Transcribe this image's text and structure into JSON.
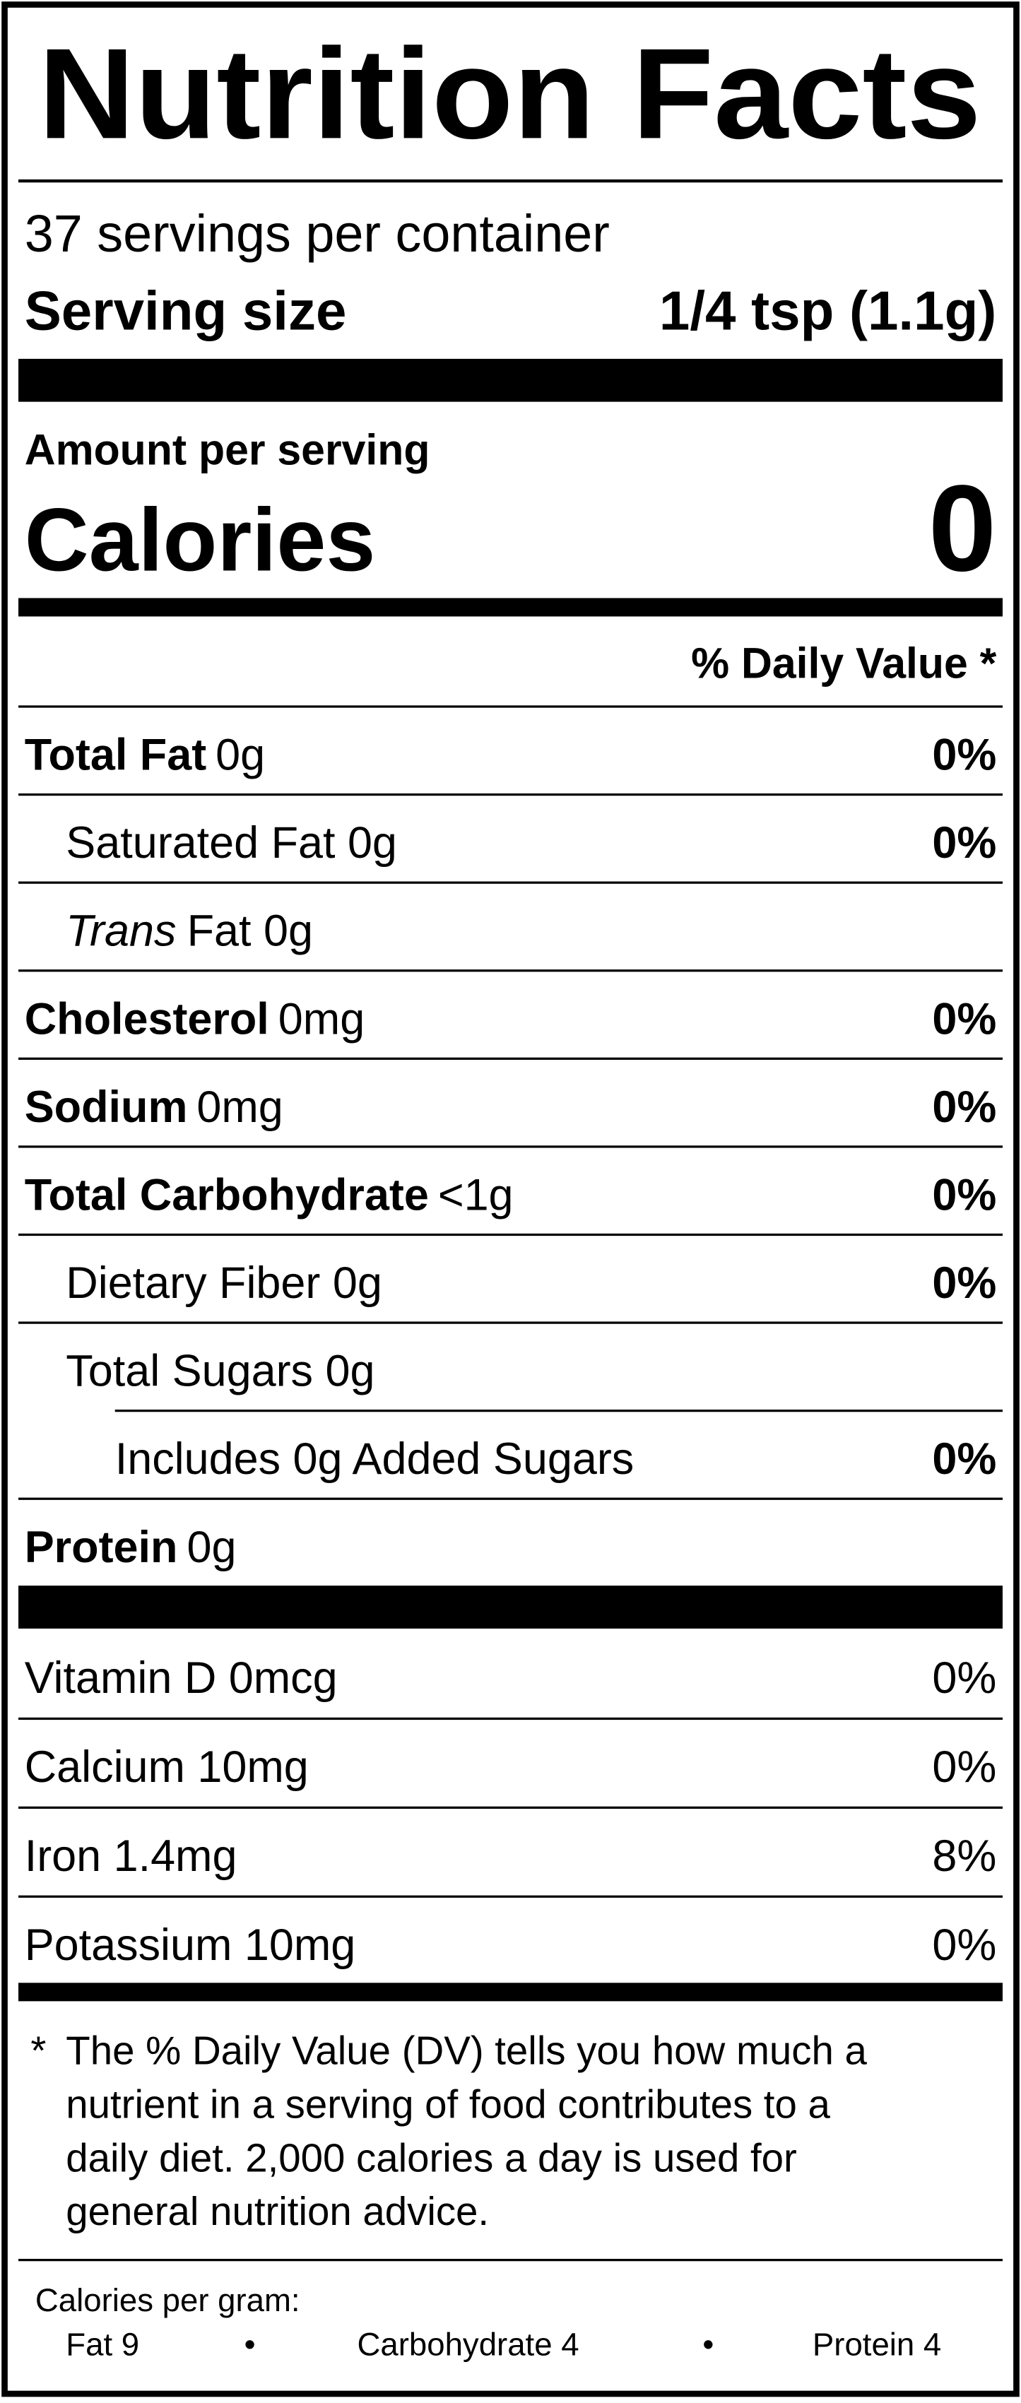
{
  "title": "Nutrition Facts",
  "servings": "37 servings per container",
  "serving_size": {
    "label": "Serving size",
    "value": "1/4 tsp (1.1g)"
  },
  "amount_per_serving": "Amount per serving",
  "calories": {
    "label": "Calories",
    "value": "0"
  },
  "daily_value_header": "% Daily Value *",
  "nutrients": [
    {
      "name": "Total Fat",
      "amount": "0g",
      "dv": "0%",
      "bold": true,
      "indent": 0
    },
    {
      "name": "Saturated Fat 0g",
      "dv": "0%",
      "indent": 1
    },
    {
      "italic": "Trans",
      "name": "Fat 0g",
      "indent": 1
    },
    {
      "name": "Cholesterol",
      "amount": "0mg",
      "dv": "0%",
      "bold": true,
      "indent": 0
    },
    {
      "name": "Sodium",
      "amount": "0mg",
      "dv": "0%",
      "bold": true,
      "indent": 0
    },
    {
      "name": "Total Carbohydrate",
      "amount": "<1g",
      "dv": "0%",
      "bold": true,
      "indent": 0
    },
    {
      "name": "Dietary Fiber 0g",
      "dv": "0%",
      "indent": 1
    },
    {
      "name": "Total Sugars 0g",
      "indent": 1
    },
    {
      "name": "Includes 0g Added Sugars",
      "dv": "0%",
      "indent": 2
    },
    {
      "name": "Protein",
      "amount": "0g",
      "bold": true,
      "indent": 0
    }
  ],
  "vitamins": [
    {
      "name": "Vitamin D 0mcg",
      "dv": "0%"
    },
    {
      "name": "Calcium 10mg",
      "dv": "0%"
    },
    {
      "name": "Iron 1.4mg",
      "dv": "8%"
    },
    {
      "name": "Potassium 10mg",
      "dv": "0%"
    }
  ],
  "footnote": {
    "marker": "*",
    "lines": [
      "The % Daily Value (DV) tells you how much a",
      "nutrient in a serving of food contributes to a",
      "daily diet. 2,000 calories a day is used for",
      "general nutrition advice."
    ]
  },
  "calories_per_gram": {
    "label": "Calories per gram:",
    "items": [
      "Fat 9",
      "Carbohydrate 4",
      "Protein 4"
    ],
    "separator": "•"
  }
}
